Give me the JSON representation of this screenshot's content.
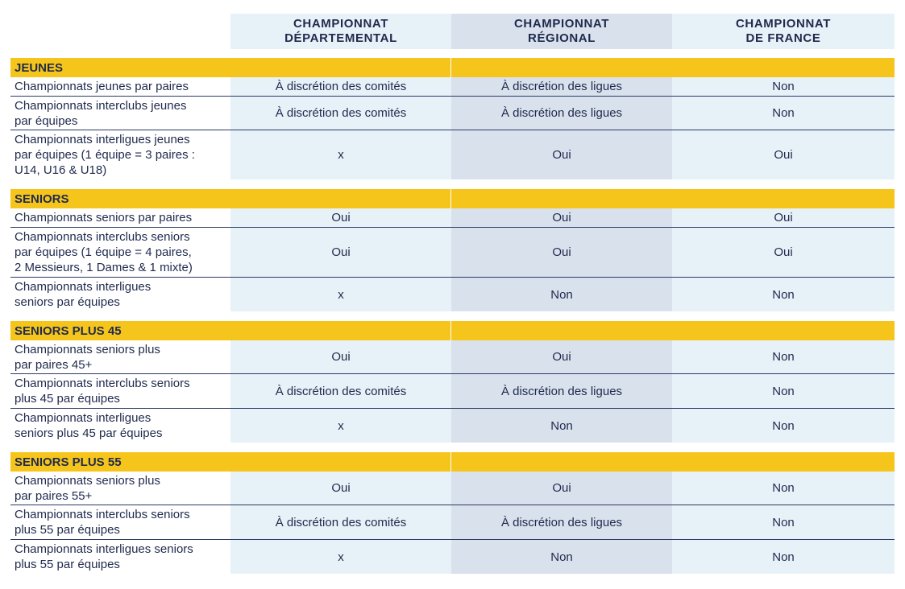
{
  "columns": [
    {
      "line1": "CHAMPIONNAT",
      "line2": "DÉPARTEMENTAL"
    },
    {
      "line1": "CHAMPIONNAT",
      "line2": "RÉGIONAL"
    },
    {
      "line1": "CHAMPIONNAT",
      "line2": "DE FRANCE"
    }
  ],
  "sections": [
    {
      "title": "JEUNES",
      "rows": [
        {
          "label": "Championnats jeunes par paires",
          "dept": "À discrétion des comités",
          "reg": "À discrétion des ligues",
          "fr": "Non"
        },
        {
          "label": "Championnats interclubs jeunes\npar équipes",
          "dept": "À discrétion des comités",
          "reg": "À discrétion des ligues",
          "fr": "Non"
        },
        {
          "label": "Championnats interligues jeunes\npar équipes (1 équipe = 3 paires :\nU14, U16 & U18)",
          "dept": "x",
          "reg": "Oui",
          "fr": "Oui"
        }
      ]
    },
    {
      "title": "SENIORS",
      "rows": [
        {
          "label": "Championnats seniors par paires",
          "dept": "Oui",
          "reg": "Oui",
          "fr": "Oui"
        },
        {
          "label": "Championnats interclubs seniors\npar équipes (1 équipe = 4 paires,\n2 Messieurs, 1 Dames & 1 mixte)",
          "dept": "Oui",
          "reg": "Oui",
          "fr": "Oui"
        },
        {
          "label": "Championnats interligues\nseniors par équipes",
          "dept": "x",
          "reg": "Non",
          "fr": "Non"
        }
      ]
    },
    {
      "title": "SENIORS PLUS 45",
      "rows": [
        {
          "label": "Championnats seniors plus\npar paires 45+",
          "dept": "Oui",
          "reg": "Oui",
          "fr": "Non"
        },
        {
          "label": "Championnats interclubs seniors\nplus 45 par équipes",
          "dept": "À discrétion des comités",
          "reg": "À discrétion des ligues",
          "fr": "Non"
        },
        {
          "label": "Championnats interligues\nseniors plus 45 par équipes",
          "dept": "x",
          "reg": "Non",
          "fr": "Non"
        }
      ]
    },
    {
      "title": "SENIORS PLUS 55",
      "rows": [
        {
          "label": "Championnats seniors plus\npar paires 55+",
          "dept": "Oui",
          "reg": "Oui",
          "fr": "Non"
        },
        {
          "label": "Championnats interclubs seniors\nplus 55 par équipes",
          "dept": "À discrétion des comités",
          "reg": "À discrétion des ligues",
          "fr": "Non"
        },
        {
          "label": "Championnats interligues seniors\nplus 55 par équipes",
          "dept": "x",
          "reg": "Non",
          "fr": "Non"
        }
      ]
    }
  ],
  "colors": {
    "section_band": "#f6c51c",
    "column_light": "#e7f1f8",
    "column_dark": "#d9e1ed",
    "text": "#1f2a4d",
    "rule": "#2b3a66"
  }
}
